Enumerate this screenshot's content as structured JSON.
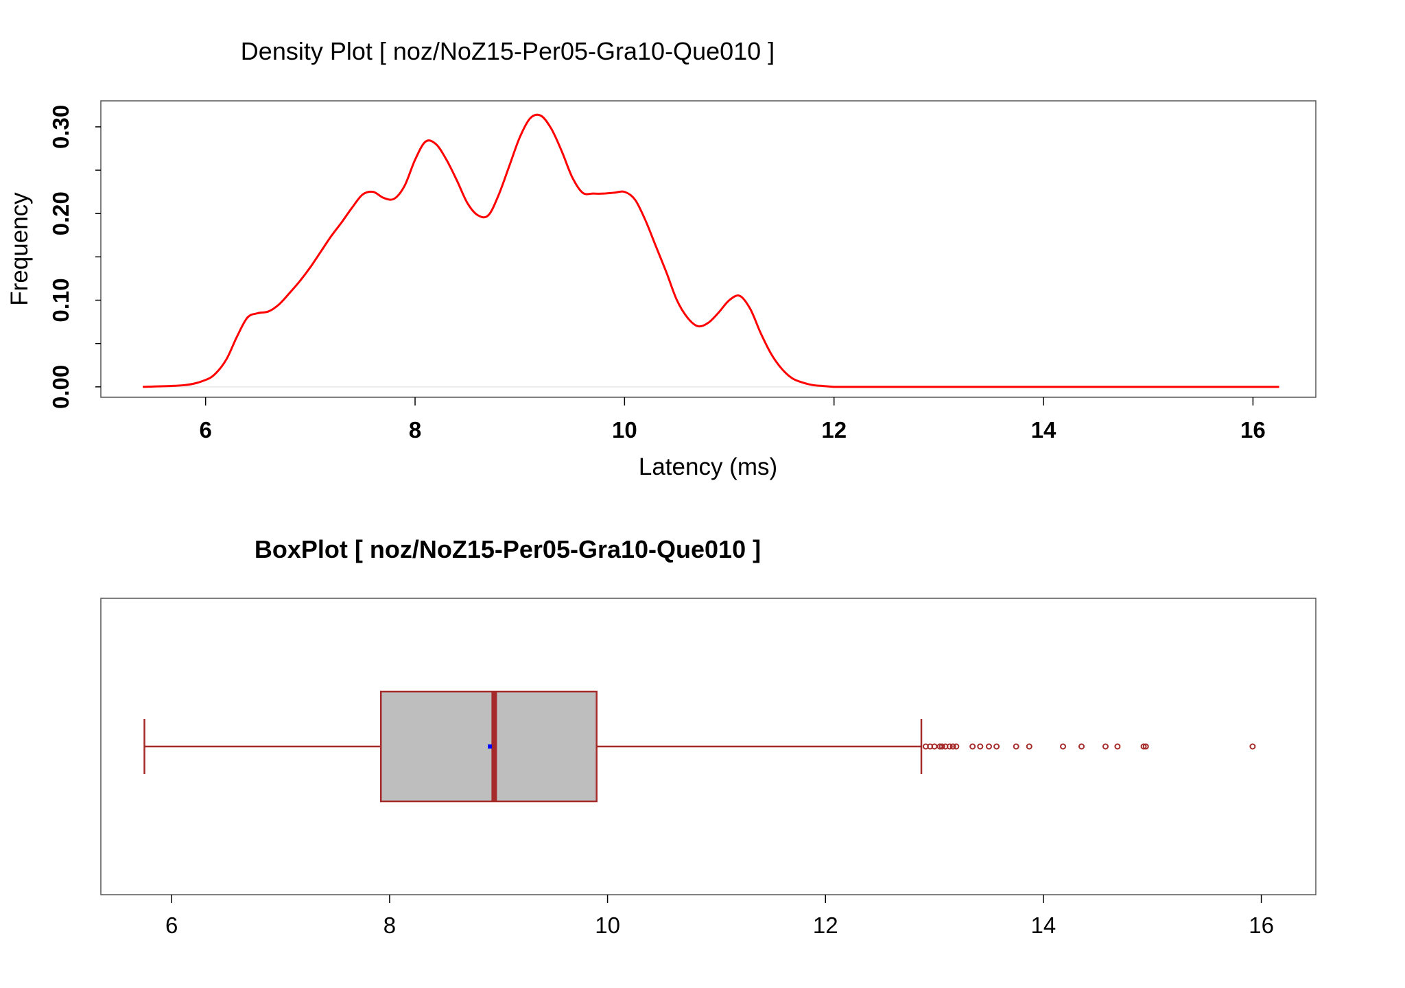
{
  "chart_data": [
    {
      "type": "line",
      "title": "Density Plot [ noz/NoZ15-Per05-Gra10-Que010 ]",
      "xlabel": "Latency (ms)",
      "ylabel": "Frequency",
      "xlim": [
        5.0,
        16.6
      ],
      "ylim": [
        -0.012,
        0.33
      ],
      "x_ticks": [
        "6",
        "8",
        "10",
        "12",
        "14",
        "16"
      ],
      "y_ticks": [
        "0.00",
        "0.10",
        "0.20",
        "0.30"
      ],
      "line_color": "#ff0000",
      "series": [
        {
          "x": [
            5.4,
            5.8,
            6.0,
            6.1,
            6.2,
            6.3,
            6.4,
            6.5,
            6.6,
            6.7,
            6.8,
            6.9,
            7.0,
            7.1,
            7.2,
            7.3,
            7.4,
            7.5,
            7.6,
            7.7,
            7.8,
            7.9,
            8.0,
            8.1,
            8.2,
            8.3,
            8.4,
            8.5,
            8.6,
            8.7,
            8.8,
            8.9,
            9.0,
            9.1,
            9.2,
            9.3,
            9.4,
            9.5,
            9.6,
            9.7,
            9.8,
            9.9,
            10.0,
            10.1,
            10.2,
            10.3,
            10.4,
            10.5,
            10.6,
            10.7,
            10.8,
            10.9,
            11.0,
            11.1,
            11.2,
            11.3,
            11.4,
            11.5,
            11.6,
            11.7,
            11.8,
            11.9,
            12.0,
            12.2,
            12.5,
            13.0,
            14.0,
            15.0,
            16.0,
            16.25
          ],
          "y": [
            0.0,
            0.002,
            0.008,
            0.016,
            0.032,
            0.058,
            0.08,
            0.085,
            0.087,
            0.095,
            0.108,
            0.122,
            0.138,
            0.156,
            0.174,
            0.19,
            0.207,
            0.222,
            0.225,
            0.218,
            0.217,
            0.232,
            0.262,
            0.283,
            0.28,
            0.262,
            0.238,
            0.212,
            0.198,
            0.198,
            0.222,
            0.255,
            0.288,
            0.31,
            0.313,
            0.298,
            0.272,
            0.242,
            0.224,
            0.223,
            0.223,
            0.224,
            0.225,
            0.216,
            0.192,
            0.162,
            0.132,
            0.1,
            0.08,
            0.07,
            0.074,
            0.086,
            0.1,
            0.105,
            0.09,
            0.062,
            0.038,
            0.021,
            0.01,
            0.005,
            0.002,
            0.001,
            0.0,
            0.0,
            0.0,
            0.0,
            0.0,
            0.0,
            0.0,
            0.0
          ]
        }
      ]
    },
    {
      "type": "box",
      "title": "BoxPlot [ noz/NoZ15-Per05-Gra10-Que010 ]",
      "xlim": [
        5.35,
        16.5
      ],
      "x_ticks": [
        "6",
        "8",
        "10",
        "12",
        "14",
        "16"
      ],
      "whisker_low": 5.75,
      "q1": 7.92,
      "median": 8.96,
      "q3": 9.9,
      "whisker_high": 12.88,
      "mean": 8.92,
      "outliers": [
        12.92,
        12.96,
        13.0,
        13.05,
        13.07,
        13.1,
        13.14,
        13.17,
        13.2,
        13.35,
        13.42,
        13.5,
        13.57,
        13.75,
        13.87,
        14.18,
        14.35,
        14.57,
        14.68,
        14.92,
        14.94,
        15.92
      ],
      "box_fill": "#bebebe",
      "box_border": "#a52a2a",
      "mean_color": "#0000ff"
    }
  ]
}
